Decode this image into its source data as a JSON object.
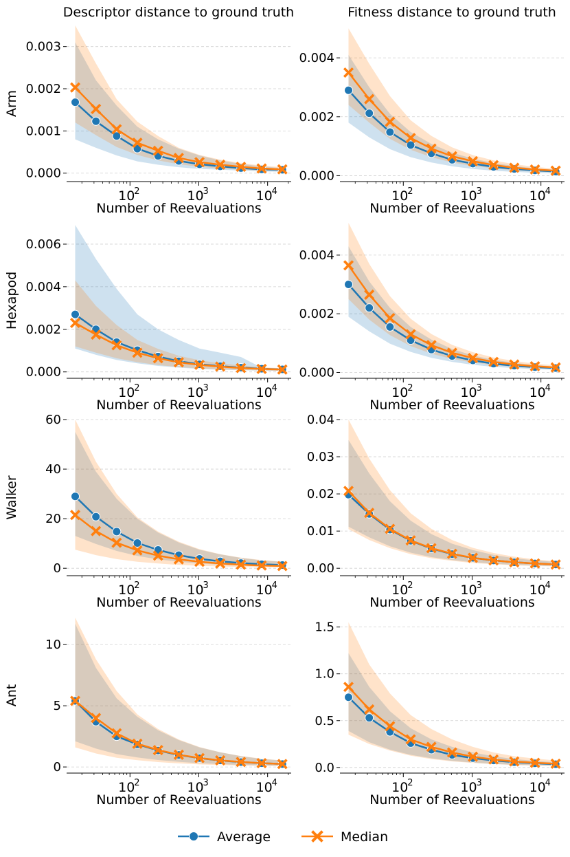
{
  "colors": {
    "average": "#1f77b4",
    "median": "#ff7f0e",
    "grid": "#d0d0d0",
    "axis": "#000000"
  },
  "column_titles": [
    "Descriptor distance to ground truth",
    "Fitness distance to ground truth"
  ],
  "row_labels": [
    "Arm",
    "Hexapod",
    "Walker",
    "Ant"
  ],
  "xlabel": "Number of Reevaluations",
  "legend": {
    "average": "Average",
    "median": "Median",
    "position": "bottom-center"
  },
  "chart_data": [
    {
      "type": "line",
      "id": "arm-descriptor",
      "row": 0,
      "col": 0,
      "ylabel": "Arm",
      "xlabel": "Number of Reevaluations",
      "xscale": "log",
      "xlim": [
        12,
        22000
      ],
      "ylim": [
        -0.0002,
        0.0035
      ],
      "yticks": [
        0,
        0.001,
        0.002,
        0.003
      ],
      "ytick_labels": [
        "0.000",
        "0.001",
        "0.002",
        "0.003"
      ],
      "x": [
        16,
        32,
        64,
        128,
        256,
        512,
        1024,
        2048,
        4096,
        8192,
        16384
      ],
      "series": [
        {
          "name": "Average",
          "values": [
            0.00168,
            0.00123,
            0.00088,
            0.00058,
            0.00041,
            0.00029,
            0.00021,
            0.00016,
            0.00012,
            9e-05,
            8e-05
          ],
          "lower": [
            0.0008,
            0.0006,
            0.00042,
            0.00028,
            0.0002,
            0.00014,
            0.0001,
            8e-05,
            6e-05,
            4e-05,
            3e-05
          ],
          "upper": [
            0.0031,
            0.0022,
            0.0016,
            0.0011,
            0.0008,
            0.00058,
            0.00042,
            0.0003,
            0.00022,
            0.00016,
            0.00012
          ]
        },
        {
          "name": "Median",
          "values": [
            0.00203,
            0.00152,
            0.00104,
            0.00072,
            0.00053,
            0.00036,
            0.00026,
            0.0002,
            0.00015,
            0.00011,
            9e-05
          ],
          "lower": [
            0.0012,
            0.0009,
            0.00062,
            0.00043,
            0.0003,
            0.00021,
            0.00015,
            0.00011,
            8e-05,
            6e-05,
            5e-05
          ],
          "upper": [
            0.0035,
            0.0026,
            0.00175,
            0.00122,
            0.00088,
            0.0006,
            0.00043,
            0.00032,
            0.00024,
            0.00018,
            0.00014
          ]
        }
      ]
    },
    {
      "type": "line",
      "id": "arm-fitness",
      "row": 0,
      "col": 1,
      "ylabel": "",
      "xlabel": "Number of Reevaluations",
      "xscale": "log",
      "xlim": [
        12,
        22000
      ],
      "ylim": [
        -0.0002,
        0.0051
      ],
      "yticks": [
        0,
        0.002,
        0.004
      ],
      "ytick_labels": [
        "0.000",
        "0.002",
        "0.004"
      ],
      "x": [
        16,
        32,
        64,
        128,
        256,
        512,
        1024,
        2048,
        4096,
        8192,
        16384
      ],
      "series": [
        {
          "name": "Average",
          "values": [
            0.0029,
            0.00212,
            0.00148,
            0.00104,
            0.00076,
            0.00054,
            0.00041,
            0.0003,
            0.00023,
            0.00018,
            0.00014
          ],
          "lower": [
            0.0018,
            0.0013,
            0.0009,
            0.00063,
            0.00045,
            0.00032,
            0.00023,
            0.00017,
            0.00013,
            0.0001,
            8e-05
          ],
          "upper": [
            0.0041,
            0.003,
            0.0021,
            0.00148,
            0.00108,
            0.00078,
            0.00058,
            0.00043,
            0.00033,
            0.00025,
            0.0002
          ]
        },
        {
          "name": "Median",
          "values": [
            0.0035,
            0.0026,
            0.00183,
            0.00128,
            0.00092,
            0.00066,
            0.00049,
            0.00036,
            0.00027,
            0.00021,
            0.00017
          ],
          "lower": [
            0.0024,
            0.0018,
            0.00125,
            0.00088,
            0.00063,
            0.00045,
            0.00033,
            0.00025,
            0.00018,
            0.00014,
            0.00011
          ],
          "upper": [
            0.005,
            0.0038,
            0.0027,
            0.00188,
            0.00135,
            0.00096,
            0.0007,
            0.00052,
            0.00039,
            0.0003,
            0.00024
          ]
        }
      ]
    },
    {
      "type": "line",
      "id": "hexapod-descriptor",
      "row": 1,
      "col": 0,
      "ylabel": "Hexapod",
      "xlabel": "Number of Reevaluations",
      "xscale": "log",
      "xlim": [
        12,
        22000
      ],
      "ylim": [
        -0.0003,
        0.007
      ],
      "yticks": [
        0,
        0.002,
        0.004,
        0.006
      ],
      "ytick_labels": [
        "0.000",
        "0.002",
        "0.004",
        "0.006"
      ],
      "x": [
        16,
        32,
        64,
        128,
        256,
        512,
        1024,
        2048,
        4096,
        8192,
        16384
      ],
      "series": [
        {
          "name": "Average",
          "values": [
            0.0027,
            0.002,
            0.0014,
            0.00102,
            0.00072,
            0.0005,
            0.00036,
            0.00027,
            0.0002,
            0.00015,
            0.00012
          ],
          "lower": [
            0.0011,
            0.0008,
            0.00056,
            0.0004,
            0.00028,
            0.0002,
            0.00014,
            0.0001,
            8e-05,
            6e-05,
            5e-05
          ],
          "upper": [
            0.0069,
            0.0053,
            0.0039,
            0.0027,
            0.002,
            0.0015,
            0.0011,
            0.0009,
            0.0007,
            0.0002,
            0.00012
          ]
        },
        {
          "name": "Median",
          "values": [
            0.0023,
            0.00175,
            0.00125,
            0.0009,
            0.00064,
            0.00045,
            0.00033,
            0.00025,
            0.00018,
            0.00014,
            0.00011
          ],
          "lower": [
            0.0012,
            0.0009,
            0.00064,
            0.00046,
            0.00032,
            0.00023,
            0.00016,
            0.00012,
            9e-05,
            7e-05,
            5e-05
          ],
          "upper": [
            0.0043,
            0.0031,
            0.0022,
            0.0015,
            0.00108,
            0.00076,
            0.00055,
            0.0004,
            0.0003,
            0.00022,
            0.00017
          ]
        }
      ]
    },
    {
      "type": "line",
      "id": "hexapod-fitness",
      "row": 1,
      "col": 1,
      "ylabel": "",
      "xlabel": "Number of Reevaluations",
      "xscale": "log",
      "xlim": [
        12,
        22000
      ],
      "ylim": [
        -0.0002,
        0.0051
      ],
      "yticks": [
        0,
        0.002,
        0.004
      ],
      "ytick_labels": [
        "0.000",
        "0.002",
        "0.004"
      ],
      "x": [
        16,
        32,
        64,
        128,
        256,
        512,
        1024,
        2048,
        4096,
        8192,
        16384
      ],
      "series": [
        {
          "name": "Average",
          "values": [
            0.003,
            0.0022,
            0.00155,
            0.0011,
            0.00078,
            0.00056,
            0.00041,
            0.0003,
            0.00023,
            0.00018,
            0.00015
          ],
          "lower": [
            0.0019,
            0.0014,
            0.00098,
            0.0007,
            0.0005,
            0.00036,
            0.00026,
            0.00019,
            0.00015,
            0.00011,
            9e-05
          ],
          "upper": [
            0.0043,
            0.0031,
            0.0022,
            0.00155,
            0.00112,
            0.0008,
            0.00058,
            0.00043,
            0.00033,
            0.00025,
            0.0002
          ]
        },
        {
          "name": "Median",
          "values": [
            0.00365,
            0.00265,
            0.00185,
            0.0013,
            0.00093,
            0.00067,
            0.00049,
            0.00036,
            0.00027,
            0.00021,
            0.00017
          ],
          "lower": [
            0.0025,
            0.0018,
            0.00127,
            0.0009,
            0.00064,
            0.00046,
            0.00034,
            0.00025,
            0.00019,
            0.00014,
            0.00012
          ],
          "upper": [
            0.0051,
            0.0037,
            0.0026,
            0.00183,
            0.00131,
            0.00094,
            0.00069,
            0.00051,
            0.00039,
            0.0003,
            0.00024
          ]
        }
      ]
    },
    {
      "type": "line",
      "id": "walker-descriptor",
      "row": 2,
      "col": 0,
      "ylabel": "Walker",
      "xlabel": "Number of Reevaluations",
      "xscale": "log",
      "xlim": [
        12,
        22000
      ],
      "ylim": [
        -3,
        60
      ],
      "yticks": [
        0,
        20,
        40,
        60
      ],
      "ytick_labels": [
        "0",
        "20",
        "40",
        "60"
      ],
      "x": [
        16,
        32,
        64,
        128,
        256,
        512,
        1024,
        2048,
        4096,
        8192,
        16384
      ],
      "series": [
        {
          "name": "Average",
          "values": [
            29,
            20.8,
            14.8,
            10.2,
            7.4,
            5.3,
            3.8,
            2.8,
            2.1,
            1.6,
            1.3
          ],
          "lower": [
            13,
            9.8,
            7,
            5,
            3.6,
            2.6,
            1.9,
            1.4,
            1.05,
            0.8,
            0.65
          ],
          "upper": [
            55,
            39,
            28,
            20,
            14.4,
            10.4,
            7.5,
            5.6,
            4.2,
            3.2,
            2.6
          ]
        },
        {
          "name": "Median",
          "values": [
            21.5,
            15,
            10.3,
            7.2,
            5.1,
            3.6,
            2.6,
            1.9,
            1.45,
            1.1,
            0.9
          ],
          "lower": [
            7.5,
            5.3,
            3.7,
            2.6,
            1.9,
            1.35,
            1,
            0.75,
            0.55,
            0.42,
            0.34
          ],
          "upper": [
            60,
            43,
            30,
            20.5,
            14.8,
            10.7,
            7.7,
            5.7,
            4.3,
            3.3,
            2.7
          ]
        }
      ]
    },
    {
      "type": "line",
      "id": "walker-fitness",
      "row": 2,
      "col": 1,
      "ylabel": "",
      "xlabel": "Number of Reevaluations",
      "xscale": "log",
      "xlim": [
        12,
        22000
      ],
      "ylim": [
        -0.002,
        0.04
      ],
      "yticks": [
        0,
        0.01,
        0.02,
        0.03,
        0.04
      ],
      "ytick_labels": [
        "0.00",
        "0.01",
        "0.02",
        "0.03",
        "0.04"
      ],
      "x": [
        16,
        32,
        64,
        128,
        256,
        512,
        1024,
        2048,
        4096,
        8192,
        16384
      ],
      "series": [
        {
          "name": "Average",
          "values": [
            0.0198,
            0.0146,
            0.0104,
            0.0074,
            0.0053,
            0.0038,
            0.0028,
            0.0021,
            0.0016,
            0.0013,
            0.001
          ],
          "lower": [
            0.0112,
            0.0083,
            0.0059,
            0.0042,
            0.003,
            0.0022,
            0.0016,
            0.0012,
            0.0009,
            0.0007,
            0.0006
          ],
          "upper": [
            0.0345,
            0.0255,
            0.018,
            0.0128,
            0.0092,
            0.0066,
            0.0049,
            0.0036,
            0.0027,
            0.0021,
            0.0017
          ]
        },
        {
          "name": "Median",
          "values": [
            0.0208,
            0.0149,
            0.0106,
            0.0075,
            0.0054,
            0.0039,
            0.0028,
            0.0021,
            0.0016,
            0.0013,
            0.001
          ],
          "lower": [
            0.0105,
            0.0076,
            0.0054,
            0.0038,
            0.0027,
            0.002,
            0.0014,
            0.0011,
            0.0008,
            0.0006,
            0.0005
          ],
          "upper": [
            0.04,
            0.0295,
            0.021,
            0.0148,
            0.0106,
            0.0076,
            0.0055,
            0.0041,
            0.0031,
            0.0024,
            0.0019
          ]
        }
      ]
    },
    {
      "type": "line",
      "id": "ant-descriptor",
      "row": 3,
      "col": 0,
      "ylabel": "Ant",
      "xlabel": "Number of Reevaluations",
      "xscale": "log",
      "xlim": [
        12,
        22000
      ],
      "ylim": [
        -0.5,
        12.2
      ],
      "yticks": [
        0,
        5,
        10
      ],
      "ytick_labels": [
        "0",
        "5",
        "10"
      ],
      "x": [
        16,
        32,
        64,
        128,
        256,
        512,
        1024,
        2048,
        4096,
        8192,
        16384
      ],
      "series": [
        {
          "name": "Average",
          "values": [
            5.4,
            3.7,
            2.5,
            1.85,
            1.35,
            0.98,
            0.72,
            0.53,
            0.4,
            0.31,
            0.24
          ],
          "lower": [
            2.1,
            1.5,
            1.05,
            0.78,
            0.57,
            0.42,
            0.31,
            0.23,
            0.17,
            0.13,
            0.1
          ],
          "upper": [
            11.7,
            8.1,
            5.6,
            4.1,
            3,
            2.2,
            1.6,
            1.2,
            0.88,
            0.66,
            0.52
          ]
        },
        {
          "name": "Median",
          "values": [
            5.4,
            4.0,
            2.75,
            1.9,
            1.38,
            1.0,
            0.73,
            0.54,
            0.41,
            0.31,
            0.24
          ],
          "lower": [
            1.6,
            1.1,
            0.75,
            0.55,
            0.4,
            0.29,
            0.21,
            0.16,
            0.12,
            0.09,
            0.07
          ],
          "upper": [
            12.2,
            8.8,
            6.2,
            4.3,
            3.1,
            2.25,
            1.63,
            1.2,
            0.9,
            0.68,
            0.53
          ]
        }
      ]
    },
    {
      "type": "line",
      "id": "ant-fitness",
      "row": 3,
      "col": 1,
      "ylabel": "",
      "xlabel": "Number of Reevaluations",
      "xscale": "log",
      "xlim": [
        12,
        22000
      ],
      "ylim": [
        -0.06,
        1.6
      ],
      "yticks": [
        0,
        0.5,
        1,
        1.5
      ],
      "ytick_labels": [
        "0.0",
        "0.5",
        "1.0",
        "1.5"
      ],
      "x": [
        16,
        32,
        64,
        128,
        256,
        512,
        1024,
        2048,
        4096,
        8192,
        16384
      ],
      "series": [
        {
          "name": "Average",
          "values": [
            0.75,
            0.53,
            0.38,
            0.26,
            0.19,
            0.135,
            0.1,
            0.075,
            0.057,
            0.045,
            0.035
          ],
          "lower": [
            0.39,
            0.27,
            0.19,
            0.135,
            0.098,
            0.07,
            0.052,
            0.038,
            0.029,
            0.022,
            0.017
          ],
          "upper": [
            1.22,
            0.86,
            0.6,
            0.42,
            0.3,
            0.22,
            0.16,
            0.12,
            0.09,
            0.07,
            0.055
          ]
        },
        {
          "name": "Median",
          "values": [
            0.86,
            0.62,
            0.44,
            0.3,
            0.22,
            0.16,
            0.115,
            0.085,
            0.064,
            0.05,
            0.04
          ],
          "lower": [
            0.35,
            0.25,
            0.18,
            0.125,
            0.09,
            0.065,
            0.048,
            0.036,
            0.027,
            0.021,
            0.017
          ],
          "upper": [
            1.55,
            1.1,
            0.79,
            0.56,
            0.41,
            0.3,
            0.22,
            0.16,
            0.12,
            0.095,
            0.075
          ]
        }
      ]
    }
  ]
}
